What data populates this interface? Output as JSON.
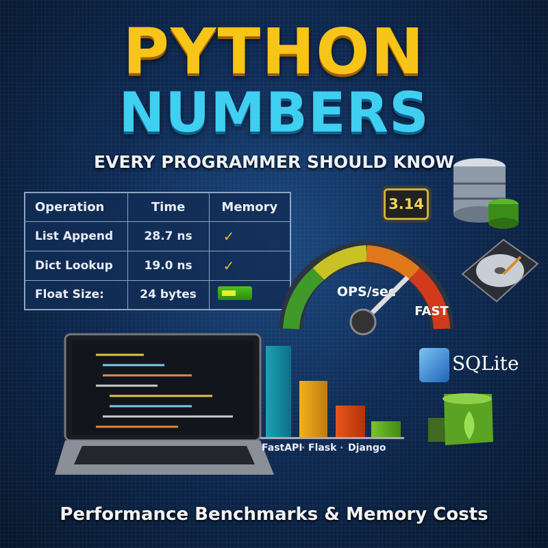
{
  "title_line1": "PYTHON",
  "title_line2": "NUMBERS",
  "subtitle": "EVERY PROGRAMMER SHOULD KNOW",
  "table": {
    "headers": [
      "Operation",
      "Time",
      "Memory"
    ],
    "rows": [
      {
        "operation": "List Append",
        "time": "28.7 ns",
        "memory_icon": "check-icon"
      },
      {
        "operation": "Dict Lookup",
        "time": "19.0 ns",
        "memory_icon": "check-icon"
      },
      {
        "operation": "Float Size:",
        "time": "24 bytes",
        "memory_icon": "memory-stick-icon"
      }
    ]
  },
  "chip_label": "3.14",
  "gauge": {
    "label": "OPS/sec",
    "speed_label": "FAST"
  },
  "frameworks": {
    "labels": [
      "FastAPI",
      "Flask",
      "Django"
    ],
    "separator": "·"
  },
  "sqlite_logo": "SQLite",
  "footer": "Performance Benchmarks & Memory Costs",
  "colors": {
    "title_yellow": "#f7c418",
    "title_cyan": "#3fcff0",
    "background": "#0f2a52"
  }
}
